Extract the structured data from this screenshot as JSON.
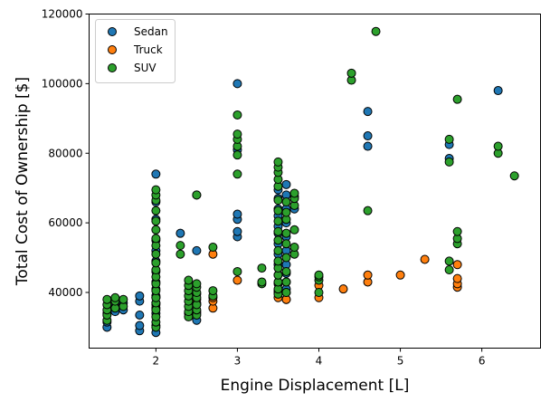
{
  "chart_data": {
    "type": "scatter",
    "xlabel": "Engine Displacement [L]",
    "ylabel": "Total Cost of Ownership [$]",
    "xlim": [
      1.18,
      6.72
    ],
    "ylim": [
      24000,
      120000
    ],
    "xticks": [
      {
        "value": 2,
        "label": "2"
      },
      {
        "value": 3,
        "label": "3"
      },
      {
        "value": 4,
        "label": "4"
      },
      {
        "value": 5,
        "label": "5"
      },
      {
        "value": 6,
        "label": "6"
      }
    ],
    "yticks": [
      {
        "value": 40000,
        "label": "40000"
      },
      {
        "value": 60000,
        "label": "60000"
      },
      {
        "value": 80000,
        "label": "80000"
      },
      {
        "value": 100000,
        "label": "100000"
      },
      {
        "value": 120000,
        "label": "120000"
      }
    ],
    "grid": false,
    "legend": {
      "position": "top-left"
    },
    "series": [
      {
        "name": "Sedan",
        "color": "#1f77b4",
        "points": [
          [
            1.4,
            30000
          ],
          [
            1.4,
            31500
          ],
          [
            1.4,
            34000
          ],
          [
            1.5,
            34500
          ],
          [
            1.5,
            36000
          ],
          [
            1.6,
            35000
          ],
          [
            1.6,
            37000
          ],
          [
            1.8,
            29000
          ],
          [
            1.8,
            30500
          ],
          [
            1.8,
            33500
          ],
          [
            1.8,
            37500
          ],
          [
            1.8,
            39000
          ],
          [
            2.0,
            28500
          ],
          [
            2.0,
            30500
          ],
          [
            2.0,
            34000
          ],
          [
            2.0,
            36500
          ],
          [
            2.0,
            39000
          ],
          [
            2.0,
            41000
          ],
          [
            2.0,
            43000
          ],
          [
            2.0,
            46000
          ],
          [
            2.0,
            49000
          ],
          [
            2.0,
            52000
          ],
          [
            2.0,
            55000
          ],
          [
            2.0,
            61000
          ],
          [
            2.0,
            66000
          ],
          [
            2.0,
            74000
          ],
          [
            2.3,
            57000
          ],
          [
            2.4,
            34000
          ],
          [
            2.5,
            32000
          ],
          [
            2.5,
            34500
          ],
          [
            2.5,
            37000
          ],
          [
            2.5,
            39500
          ],
          [
            2.5,
            52000
          ],
          [
            2.5,
            68000
          ],
          [
            3.0,
            56000
          ],
          [
            3.0,
            57500
          ],
          [
            3.0,
            61000
          ],
          [
            3.0,
            62500
          ],
          [
            3.0,
            81000
          ],
          [
            3.0,
            100000
          ],
          [
            3.5,
            40000
          ],
          [
            3.5,
            42500
          ],
          [
            3.5,
            45000
          ],
          [
            3.5,
            48000
          ],
          [
            3.5,
            51000
          ],
          [
            3.5,
            54000
          ],
          [
            3.5,
            57000
          ],
          [
            3.5,
            59000
          ],
          [
            3.5,
            62000
          ],
          [
            3.5,
            64000
          ],
          [
            3.5,
            67000
          ],
          [
            3.5,
            69500
          ],
          [
            3.6,
            38000
          ],
          [
            3.6,
            41000
          ],
          [
            3.6,
            43000
          ],
          [
            3.6,
            45500
          ],
          [
            3.6,
            48000
          ],
          [
            3.6,
            52000
          ],
          [
            3.6,
            56000
          ],
          [
            3.6,
            60000
          ],
          [
            3.6,
            64000
          ],
          [
            3.6,
            68000
          ],
          [
            3.6,
            71000
          ],
          [
            3.7,
            64000
          ],
          [
            3.7,
            67500
          ],
          [
            4.6,
            82000
          ],
          [
            4.6,
            85000
          ],
          [
            4.6,
            92000
          ],
          [
            5.6,
            78500
          ],
          [
            5.6,
            82500
          ],
          [
            6.2,
            98000
          ]
        ]
      },
      {
        "name": "Truck",
        "color": "#ff7f0e",
        "points": [
          [
            2.0,
            35500
          ],
          [
            2.0,
            37000
          ],
          [
            2.0,
            38500
          ],
          [
            2.5,
            34000
          ],
          [
            2.5,
            36500
          ],
          [
            2.5,
            38000
          ],
          [
            2.7,
            35500
          ],
          [
            2.7,
            37500
          ],
          [
            2.7,
            38500
          ],
          [
            2.7,
            51000
          ],
          [
            3.0,
            43500
          ],
          [
            3.5,
            38500
          ],
          [
            3.5,
            40500
          ],
          [
            3.6,
            38000
          ],
          [
            3.6,
            40000
          ],
          [
            4.0,
            38500
          ],
          [
            4.0,
            42000
          ],
          [
            4.3,
            41000
          ],
          [
            4.6,
            43000
          ],
          [
            4.6,
            45000
          ],
          [
            5.0,
            45000
          ],
          [
            5.3,
            49500
          ],
          [
            5.7,
            41500
          ],
          [
            5.7,
            42500
          ],
          [
            5.7,
            44000
          ],
          [
            5.7,
            48000
          ]
        ]
      },
      {
        "name": "SUV",
        "color": "#2ca02c",
        "points": [
          [
            1.4,
            32000
          ],
          [
            1.4,
            33500
          ],
          [
            1.4,
            35000
          ],
          [
            1.4,
            36500
          ],
          [
            1.4,
            38000
          ],
          [
            1.5,
            35500
          ],
          [
            1.5,
            37500
          ],
          [
            1.5,
            38500
          ],
          [
            1.6,
            36000
          ],
          [
            1.6,
            38000
          ],
          [
            2.0,
            30000
          ],
          [
            2.0,
            31500
          ],
          [
            2.0,
            33000
          ],
          [
            2.0,
            35000
          ],
          [
            2.0,
            37000
          ],
          [
            2.0,
            38500
          ],
          [
            2.0,
            40500
          ],
          [
            2.0,
            42500
          ],
          [
            2.0,
            44500
          ],
          [
            2.0,
            46500
          ],
          [
            2.0,
            48500
          ],
          [
            2.0,
            51000
          ],
          [
            2.0,
            53500
          ],
          [
            2.0,
            55500
          ],
          [
            2.0,
            58000
          ],
          [
            2.0,
            60500
          ],
          [
            2.0,
            63500
          ],
          [
            2.0,
            66500
          ],
          [
            2.0,
            68000
          ],
          [
            2.0,
            69500
          ],
          [
            2.3,
            51000
          ],
          [
            2.3,
            53500
          ],
          [
            2.4,
            33000
          ],
          [
            2.4,
            34500
          ],
          [
            2.4,
            36000
          ],
          [
            2.4,
            37500
          ],
          [
            2.4,
            39000
          ],
          [
            2.4,
            40500
          ],
          [
            2.4,
            42000
          ],
          [
            2.4,
            43500
          ],
          [
            2.5,
            33500
          ],
          [
            2.5,
            35000
          ],
          [
            2.5,
            36500
          ],
          [
            2.5,
            38500
          ],
          [
            2.5,
            40000
          ],
          [
            2.5,
            41500
          ],
          [
            2.5,
            42500
          ],
          [
            2.5,
            68000
          ],
          [
            2.7,
            39000
          ],
          [
            2.7,
            40500
          ],
          [
            2.7,
            53000
          ],
          [
            3.0,
            46000
          ],
          [
            3.0,
            74000
          ],
          [
            3.0,
            79500
          ],
          [
            3.0,
            82000
          ],
          [
            3.0,
            84000
          ],
          [
            3.0,
            85500
          ],
          [
            3.0,
            91000
          ],
          [
            3.3,
            42500
          ],
          [
            3.3,
            43000
          ],
          [
            3.3,
            47000
          ],
          [
            3.5,
            39500
          ],
          [
            3.5,
            41000
          ],
          [
            3.5,
            43000
          ],
          [
            3.5,
            45000
          ],
          [
            3.5,
            47000
          ],
          [
            3.5,
            49000
          ],
          [
            3.5,
            52000
          ],
          [
            3.5,
            55000
          ],
          [
            3.5,
            57500
          ],
          [
            3.5,
            60500
          ],
          [
            3.5,
            63500
          ],
          [
            3.5,
            66500
          ],
          [
            3.5,
            70500
          ],
          [
            3.5,
            72500
          ],
          [
            3.5,
            74500
          ],
          [
            3.5,
            76000
          ],
          [
            3.5,
            77500
          ],
          [
            3.6,
            40000
          ],
          [
            3.6,
            43000
          ],
          [
            3.6,
            46000
          ],
          [
            3.6,
            50000
          ],
          [
            3.6,
            54000
          ],
          [
            3.6,
            57000
          ],
          [
            3.6,
            61000
          ],
          [
            3.6,
            63000
          ],
          [
            3.6,
            66000
          ],
          [
            3.7,
            51000
          ],
          [
            3.7,
            53000
          ],
          [
            3.7,
            58000
          ],
          [
            3.7,
            65000
          ],
          [
            3.7,
            67000
          ],
          [
            3.7,
            68500
          ],
          [
            4.0,
            40000
          ],
          [
            4.0,
            43500
          ],
          [
            4.0,
            44500
          ],
          [
            4.0,
            45000
          ],
          [
            4.4,
            101000
          ],
          [
            4.4,
            103000
          ],
          [
            4.6,
            63500
          ],
          [
            4.7,
            115000
          ],
          [
            5.6,
            46500
          ],
          [
            5.6,
            49000
          ],
          [
            5.6,
            77500
          ],
          [
            5.6,
            84000
          ],
          [
            5.7,
            54000
          ],
          [
            5.7,
            55500
          ],
          [
            5.7,
            57500
          ],
          [
            5.7,
            95500
          ],
          [
            6.2,
            80000
          ],
          [
            6.2,
            82000
          ],
          [
            6.4,
            73500
          ]
        ]
      }
    ]
  }
}
